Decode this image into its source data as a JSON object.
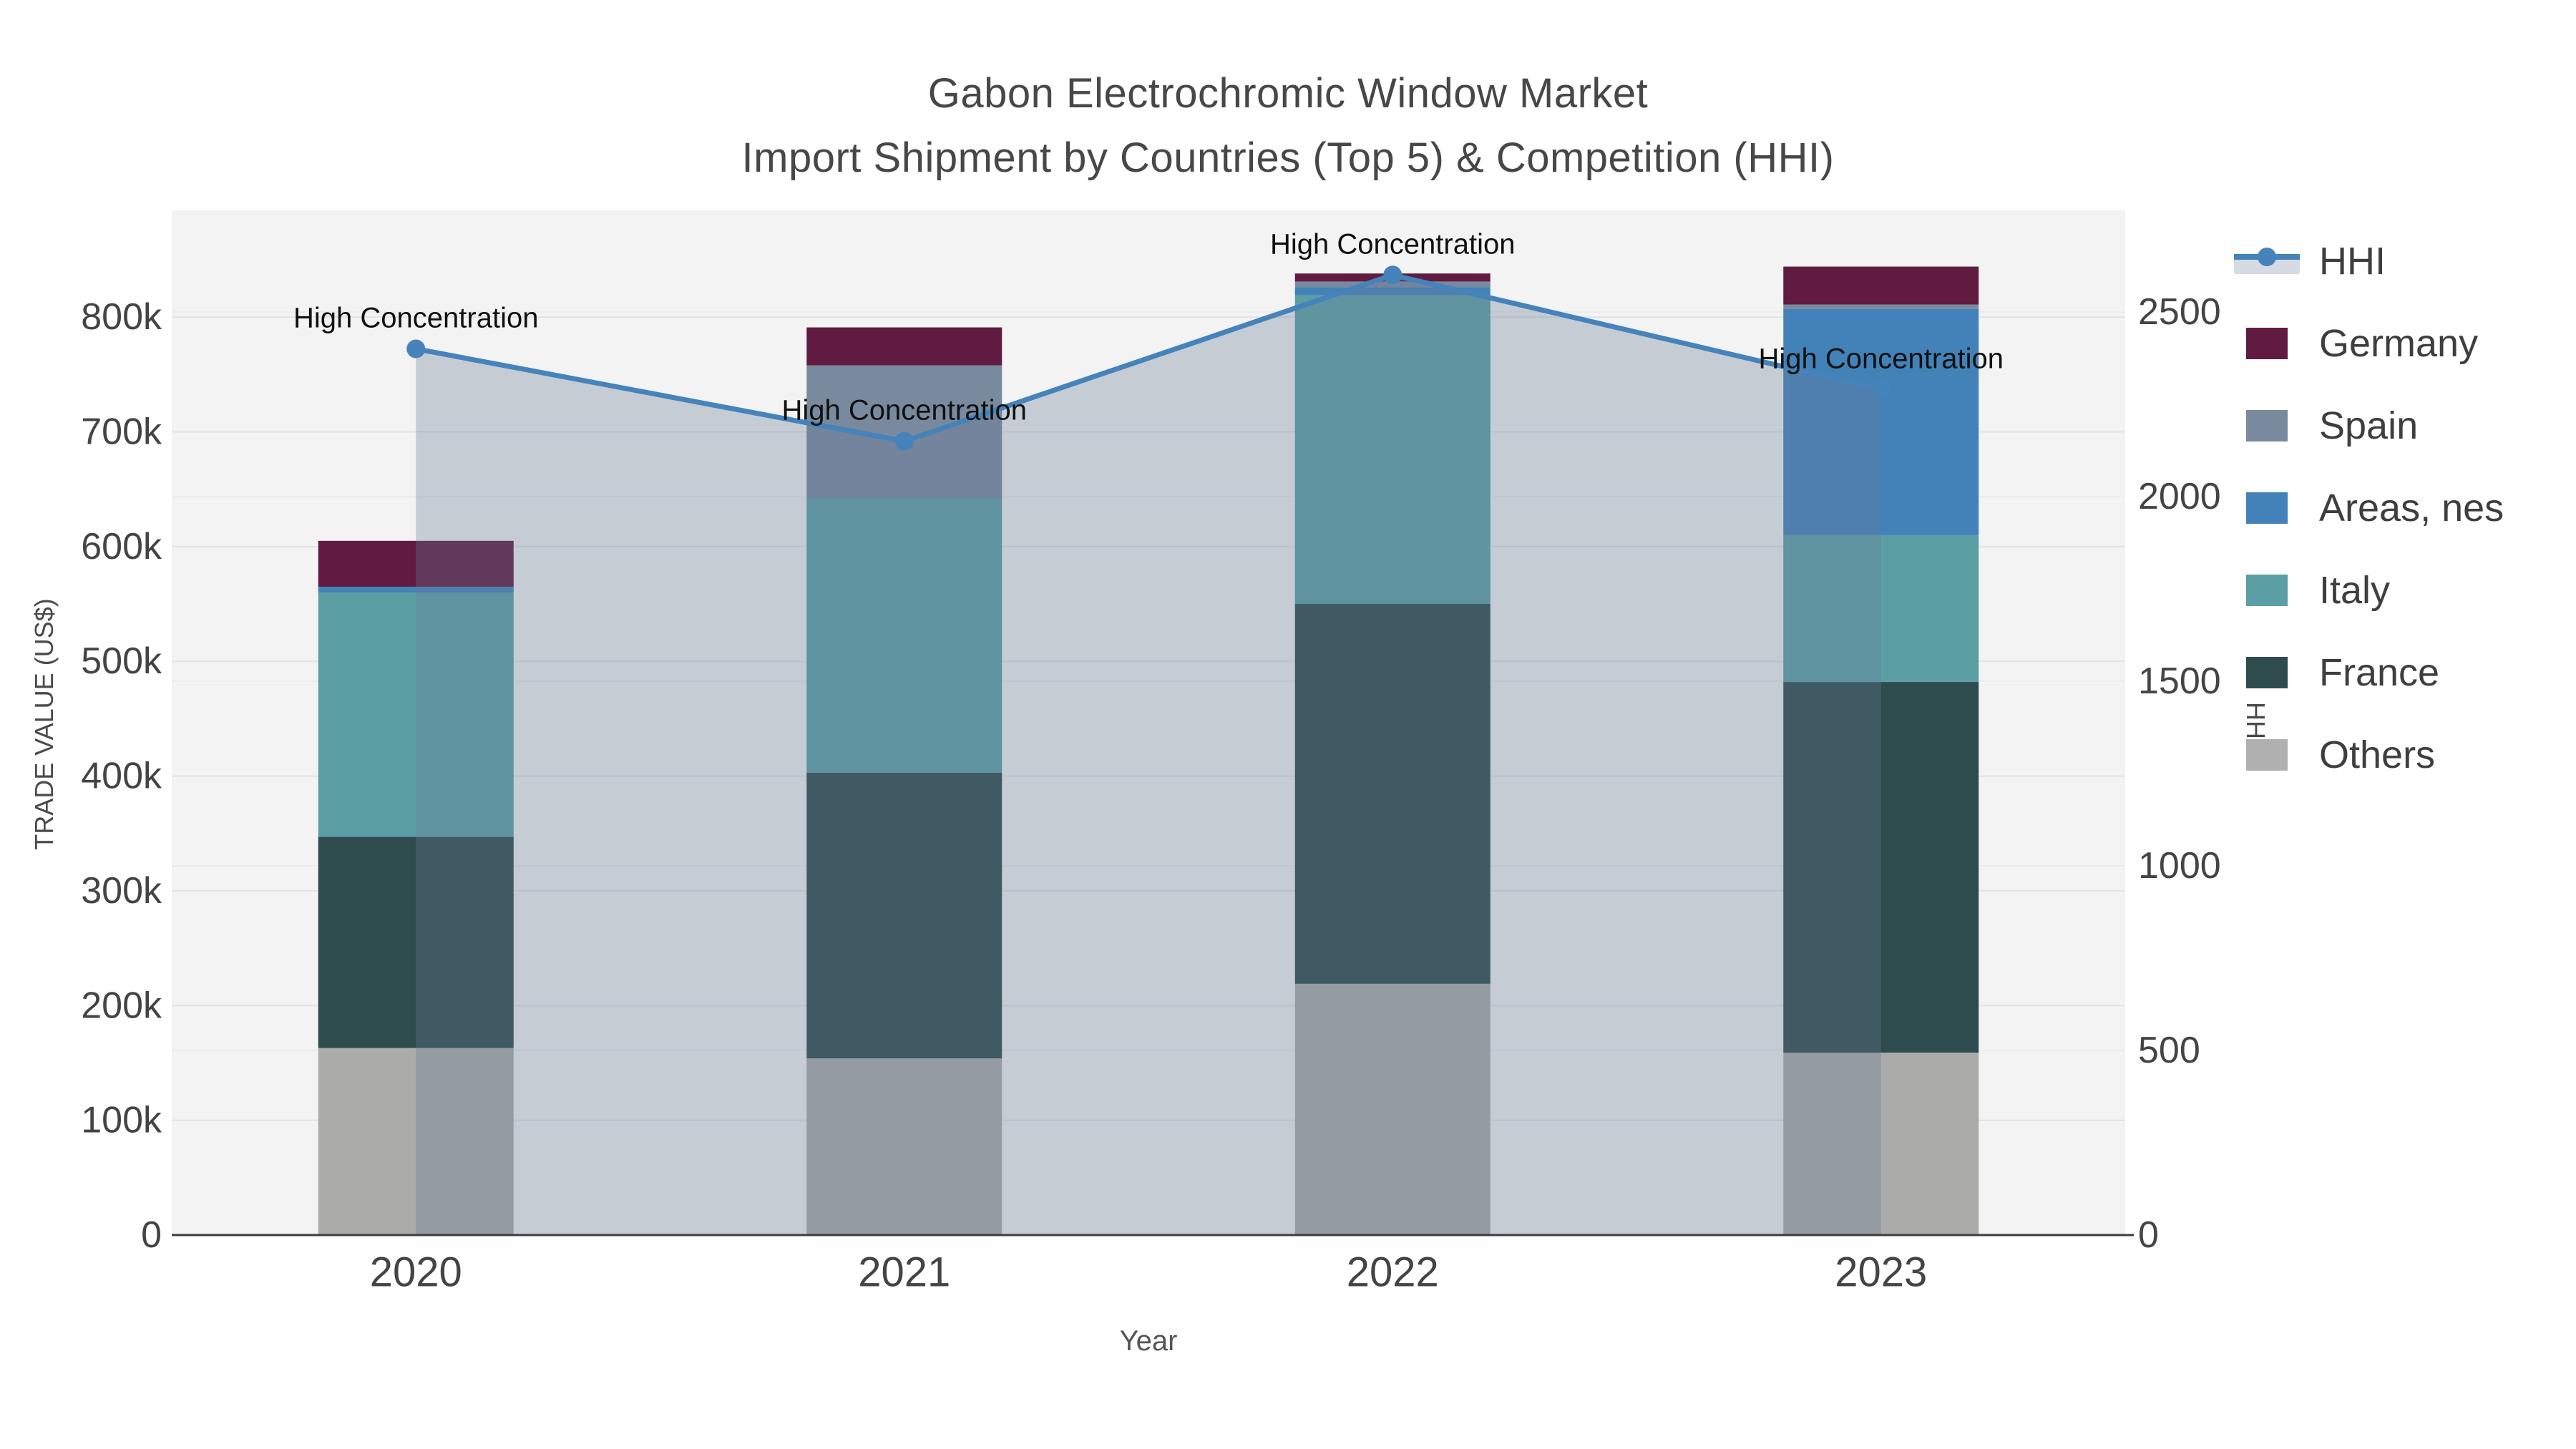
{
  "title": {
    "line1": "Gabon Electrochromic Window Market",
    "line2": "Import Shipment by Countries (Top 5) & Competition (HHI)"
  },
  "axes": {
    "y_label": "TRADE VALUE (US$)",
    "y2_label": "HHI",
    "x_label": "Year",
    "y_ticks": [
      {
        "v": 0,
        "label": "0"
      },
      {
        "v": 100000,
        "label": "100k"
      },
      {
        "v": 200000,
        "label": "200k"
      },
      {
        "v": 300000,
        "label": "300k"
      },
      {
        "v": 400000,
        "label": "400k"
      },
      {
        "v": 500000,
        "label": "500k"
      },
      {
        "v": 600000,
        "label": "600k"
      },
      {
        "v": 700000,
        "label": "700k"
      },
      {
        "v": 800000,
        "label": "800k"
      }
    ],
    "y2_ticks": [
      {
        "v": 0,
        "label": "0"
      },
      {
        "v": 500,
        "label": "500"
      },
      {
        "v": 1000,
        "label": "1000"
      },
      {
        "v": 1500,
        "label": "1500"
      },
      {
        "v": 2000,
        "label": "2000"
      },
      {
        "v": 2500,
        "label": "2500"
      }
    ]
  },
  "chart_data": {
    "type": "bar+line",
    "title": "Gabon Electrochromic Window Market — Import Shipment by Countries (Top 5) & Competition (HHI)",
    "xlabel": "Year",
    "ylabel": "TRADE VALUE (US$)",
    "y2label": "HHI",
    "categories": [
      "2020",
      "2021",
      "2022",
      "2023"
    ],
    "stack_order_bottom_to_top": [
      "Others",
      "France",
      "Italy",
      "Areas, nes",
      "Spain",
      "Germany"
    ],
    "series": [
      {
        "name": "Others",
        "color": "#ababa9",
        "values": [
          163000,
          154000,
          219000,
          159000
        ]
      },
      {
        "name": "France",
        "color": "#2e4c4d",
        "values": [
          184000,
          249000,
          331000,
          323000
        ]
      },
      {
        "name": "Italy",
        "color": "#5b9fa4",
        "values": [
          213000,
          239000,
          269000,
          128000
        ]
      },
      {
        "name": "Areas, nes",
        "color": "#4382b8",
        "values": [
          5000,
          0,
          7000,
          197000
        ]
      },
      {
        "name": "Spain",
        "color": "#798a9f",
        "values": [
          0,
          116000,
          5000,
          4000
        ]
      },
      {
        "name": "Germany",
        "color": "#611b40",
        "values": [
          40000,
          33000,
          7000,
          33000
        ]
      }
    ],
    "bar_totals": [
      605000,
      791000,
      838000,
      844000
    ],
    "line": {
      "name": "HHI",
      "color": "#4583ba",
      "fill": "rgba(104,121,148,0.32)",
      "values": [
        2400,
        2150,
        2600,
        2290
      ]
    },
    "annotations": [
      "High Concentration",
      "High Concentration",
      "High Concentration",
      "High Concentration"
    ],
    "ylim": [
      0,
      893000
    ],
    "y2lim": [
      0,
      2775
    ],
    "grid": true,
    "legend_position": "right",
    "plot_bg": "#f2f3f2",
    "grid_color_y": "#e3e3e3",
    "grid_color_y2": "#ebebeb",
    "axisline_color": "#3d3d3d",
    "tick_color": "#444444",
    "annotation_color": "#111111"
  },
  "legend": {
    "items": [
      {
        "label": "HHI",
        "color": "#4583ba",
        "type": "line"
      },
      {
        "label": "Germany",
        "color": "#611b40",
        "type": "box"
      },
      {
        "label": "Spain",
        "color": "#798a9f",
        "type": "box"
      },
      {
        "label": "Areas, nes",
        "color": "#4382b8",
        "type": "box"
      },
      {
        "label": "Italy",
        "color": "#5b9fa4",
        "type": "box"
      },
      {
        "label": "France",
        "color": "#2e4c4d",
        "type": "box"
      },
      {
        "label": "Others",
        "color": "#b0b0b0",
        "type": "box"
      }
    ]
  }
}
